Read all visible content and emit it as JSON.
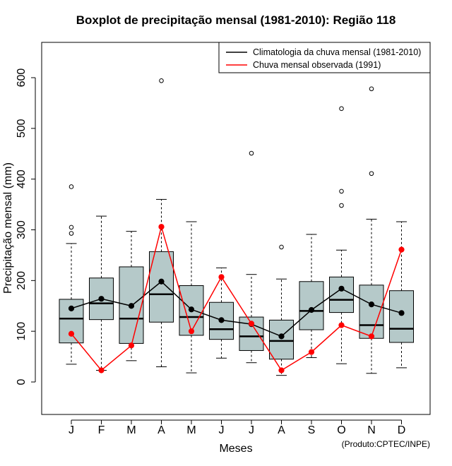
{
  "chart_data": {
    "type": "boxplot",
    "title": "Boxplot de precipitação mensal (1981-2010): Região 118",
    "xlabel": "Meses",
    "ylabel": "Precipitação mensal (mm)",
    "ylim": [
      -65,
      660
    ],
    "yticks": [
      0,
      100,
      200,
      300,
      400,
      500,
      600
    ],
    "categories": [
      "J",
      "F",
      "M",
      "A",
      "M",
      "J",
      "J",
      "A",
      "S",
      "O",
      "N",
      "D"
    ],
    "boxes": [
      {
        "min": 35,
        "q1": 77,
        "median": 125,
        "q3": 163,
        "max": 273,
        "outliers": [
          293,
          305,
          385
        ]
      },
      {
        "min": 23,
        "q1": 123,
        "median": 155,
        "q3": 205,
        "max": 327,
        "outliers": []
      },
      {
        "min": 42,
        "q1": 76,
        "median": 125,
        "q3": 227,
        "max": 297,
        "outliers": []
      },
      {
        "min": 30,
        "q1": 118,
        "median": 173,
        "q3": 257,
        "max": 360,
        "outliers": [
          594
        ]
      },
      {
        "min": 18,
        "q1": 92,
        "median": 128,
        "q3": 190,
        "max": 316,
        "outliers": []
      },
      {
        "min": 47,
        "q1": 84,
        "median": 104,
        "q3": 157,
        "max": 225,
        "outliers": []
      },
      {
        "min": 38,
        "q1": 62,
        "median": 90,
        "q3": 128,
        "max": 212,
        "outliers": [
          451
        ]
      },
      {
        "min": 13,
        "q1": 45,
        "median": 81,
        "q3": 122,
        "max": 203,
        "outliers": [
          266
        ]
      },
      {
        "min": 48,
        "q1": 103,
        "median": 140,
        "q3": 198,
        "max": 291,
        "outliers": []
      },
      {
        "min": 36,
        "q1": 137,
        "median": 162,
        "q3": 207,
        "max": 260,
        "outliers": [
          348,
          376,
          539
        ]
      },
      {
        "min": 17,
        "q1": 86,
        "median": 112,
        "q3": 191,
        "max": 321,
        "outliers": [
          411,
          578
        ]
      },
      {
        "min": 28,
        "q1": 78,
        "median": 105,
        "q3": 180,
        "max": 316,
        "outliers": []
      }
    ],
    "series": [
      {
        "name": "Climatologia da chuva mensal (1981-2010)",
        "color": "#000000",
        "values": [
          145,
          164,
          150,
          198,
          143,
          122,
          114,
          90,
          142,
          184,
          153,
          136
        ]
      },
      {
        "name": "Chuva mensal observada (1991)",
        "color": "#ff0000",
        "values": [
          95,
          23,
          72,
          306,
          100,
          207,
          115,
          23,
          59,
          112,
          90,
          261
        ]
      }
    ],
    "box_fill": "#b5c9c9",
    "legend_position": "top-right"
  },
  "credit": "(Produto:CPTEC/INPE)"
}
